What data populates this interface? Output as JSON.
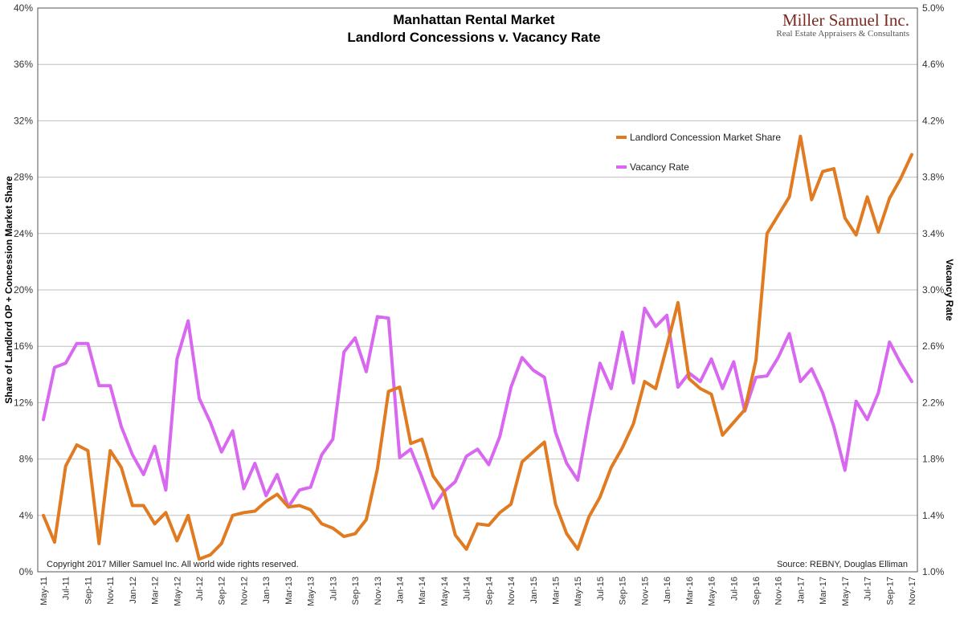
{
  "chart_data": {
    "type": "line",
    "title": "Manhattan Rental Market",
    "subtitle": "Landlord Concessions v. Vacancy Rate",
    "ylabel_left": "Share of Landlord OP + Concession Market Share",
    "ylabel_right": "Vacancy Rate",
    "ylim_left": [
      0,
      40
    ],
    "ylim_right": [
      1.0,
      5.0
    ],
    "yticks_left": [
      "0%",
      "4%",
      "8%",
      "12%",
      "16%",
      "20%",
      "24%",
      "28%",
      "32%",
      "36%",
      "40%"
    ],
    "yticks_right": [
      "1.0%",
      "1.4%",
      "1.8%",
      "2.2%",
      "2.6%",
      "3.0%",
      "3.4%",
      "3.8%",
      "4.2%",
      "4.6%",
      "5.0%"
    ],
    "grid": true,
    "legend_position": "top-right",
    "x_labels": [
      "May-11",
      "Jul-11",
      "Sep-11",
      "Nov-11",
      "Jan-12",
      "Mar-12",
      "May-12",
      "Jul-12",
      "Sep-12",
      "Nov-12",
      "Jan-13",
      "Mar-13",
      "May-13",
      "Jul-13",
      "Sep-13",
      "Nov-13",
      "Jan-14",
      "Mar-14",
      "May-14",
      "Jul-14",
      "Sep-14",
      "Nov-14",
      "Jan-15",
      "Mar-15",
      "May-15",
      "Jul-15",
      "Sep-15",
      "Nov-15",
      "Jan-16",
      "Mar-16",
      "May-16",
      "Jul-16",
      "Sep-16",
      "Nov-16",
      "Jan-17",
      "Mar-17",
      "May-17",
      "Jul-17",
      "Sep-17",
      "Nov-17"
    ],
    "series": [
      {
        "name": "Landlord Concession Market Share",
        "axis": "left",
        "color": "#e07b22",
        "values": [
          4.0,
          2.1,
          7.5,
          9.0,
          8.6,
          2.0,
          8.6,
          7.4,
          4.7,
          4.7,
          3.4,
          4.2,
          2.2,
          4.0,
          0.9,
          1.2,
          2.0,
          4.0,
          4.2,
          4.3,
          5.0,
          5.5,
          4.6,
          4.7,
          4.4,
          3.4,
          3.1,
          2.5,
          2.7,
          3.7,
          7.3,
          12.8,
          13.1,
          9.1,
          9.4,
          6.8,
          5.7,
          2.6,
          1.6,
          3.4,
          3.3,
          4.2,
          4.8,
          7.8,
          8.5,
          9.2,
          4.8,
          2.7,
          1.6,
          3.9,
          5.3,
          7.4,
          8.8,
          10.5,
          13.5,
          13.0,
          16.0,
          19.1,
          13.7,
          13.0,
          12.6,
          9.7,
          10.6,
          11.5,
          15.0,
          24.0,
          25.3,
          26.6,
          30.9,
          26.4,
          28.4,
          28.6,
          25.1,
          23.9,
          26.6,
          24.1,
          26.5,
          27.9,
          29.6
        ]
      },
      {
        "name": "Vacancy Rate",
        "axis": "right",
        "color": "#d968f0",
        "values": [
          2.08,
          2.45,
          2.48,
          2.62,
          2.62,
          2.32,
          2.32,
          2.03,
          1.83,
          1.69,
          1.89,
          1.58,
          2.51,
          2.78,
          2.23,
          2.06,
          1.85,
          2.0,
          1.59,
          1.77,
          1.54,
          1.69,
          1.46,
          1.58,
          1.6,
          1.83,
          1.94,
          2.56,
          2.66,
          2.42,
          2.81,
          2.8,
          1.81,
          1.87,
          1.67,
          1.45,
          1.57,
          1.64,
          1.82,
          1.87,
          1.76,
          1.96,
          2.31,
          2.52,
          2.43,
          2.38,
          1.99,
          1.77,
          1.65,
          2.09,
          2.48,
          2.3,
          2.7,
          2.34,
          2.87,
          2.74,
          2.82,
          2.31,
          2.41,
          2.35,
          2.51,
          2.3,
          2.49,
          2.14,
          2.38,
          2.39,
          2.52,
          2.69,
          2.35,
          2.44,
          2.27,
          2.03,
          1.72,
          2.21,
          2.08,
          2.27,
          2.63,
          2.48,
          2.35
        ]
      }
    ]
  },
  "branding": {
    "company": "Miller Samuel Inc.",
    "tagline": "Real Estate Appraisers & Consultants"
  },
  "copyright": "Copyright 2017 Miller Samuel Inc.  All world wide rights reserved.",
  "source": "Source: REBNY, Douglas Elliman"
}
